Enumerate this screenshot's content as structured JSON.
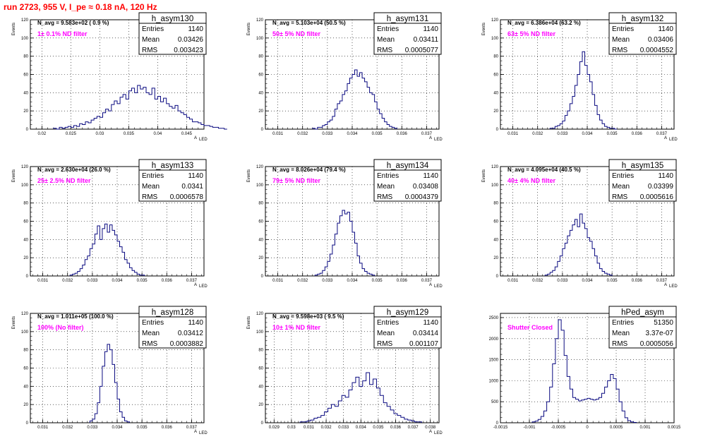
{
  "run_title": "run 2723,   955 V, I_pe ≈ 0.18 nA, 120 Hz",
  "chart_data": [
    {
      "type": "histogram",
      "name": "h_asym130",
      "ylabel": "Events",
      "xlabel": "A",
      "xlabel_sub": "LED",
      "xlim": [
        0.018,
        0.048
      ],
      "ylim": [
        0,
        120
      ],
      "xticks": [
        0.02,
        0.025,
        0.03,
        0.035,
        0.04,
        0.045
      ],
      "xtick_labels": [
        "0.02",
        "0.025",
        "0.03",
        "0.035",
        "0.04",
        "0.045"
      ],
      "yticks": [
        0,
        20,
        40,
        60,
        80,
        100,
        120
      ],
      "grid": true,
      "n_avg_text": "N_avg = 9.583e+02 ( 0.9 %)",
      "filter_text": "1± 0.1% ND filter",
      "stats": {
        "entries_label": "Entries",
        "entries": "1140",
        "mean_label": "Mean",
        "mean": "0.03426",
        "rms_label": "RMS",
        "rms": "0.003423"
      },
      "bins": {
        "start": 0.022,
        "width": 0.0005,
        "values": [
          1,
          0,
          2,
          1,
          2,
          3,
          2,
          4,
          3,
          6,
          5,
          8,
          7,
          10,
          12,
          14,
          13,
          18,
          22,
          20,
          27,
          31,
          28,
          35,
          38,
          33,
          42,
          45,
          40,
          48,
          44,
          46,
          40,
          38,
          45,
          33,
          36,
          30,
          34,
          28,
          25,
          23,
          26,
          20,
          18,
          16,
          13,
          11,
          8,
          8,
          7,
          5,
          4,
          4,
          3,
          2,
          2,
          1,
          1,
          0
        ]
      }
    },
    {
      "type": "histogram",
      "name": "h_asym131",
      "ylabel": "Events",
      "xlabel": "A",
      "xlabel_sub": "LED",
      "xlim": [
        0.0305,
        0.0375
      ],
      "ylim": [
        0,
        120
      ],
      "xticks": [
        0.031,
        0.032,
        0.033,
        0.034,
        0.035,
        0.036,
        0.037
      ],
      "xtick_labels": [
        "0.031",
        "0.032",
        "0.033",
        "0.034",
        "0.035",
        "0.036",
        "0.037"
      ],
      "yticks": [
        0,
        20,
        40,
        60,
        80,
        100,
        120
      ],
      "grid": true,
      "n_avg_text": "N_avg = 5.103e+04 (50.5 %)",
      "filter_text": "50± 5% ND filter",
      "stats": {
        "entries_label": "Entries",
        "entries": "1140",
        "mean_label": "Mean",
        "mean": "0.03411",
        "rms_label": "RMS",
        "rms": "0.0005077"
      },
      "bins": {
        "start": 0.0324,
        "width": 0.0001,
        "values": [
          1,
          0,
          2,
          2,
          4,
          5,
          8,
          10,
          14,
          22,
          28,
          31,
          38,
          42,
          50,
          56,
          60,
          65,
          58,
          62,
          56,
          52,
          46,
          40,
          38,
          30,
          22,
          17,
          12,
          8,
          5,
          3,
          2,
          1
        ]
      }
    },
    {
      "type": "histogram",
      "name": "h_asym132",
      "ylabel": "Events",
      "xlabel": "A",
      "xlabel_sub": "LED",
      "xlim": [
        0.0305,
        0.0375
      ],
      "ylim": [
        0,
        120
      ],
      "xticks": [
        0.031,
        0.032,
        0.033,
        0.034,
        0.035,
        0.036,
        0.037
      ],
      "xtick_labels": [
        "0.031",
        "0.032",
        "0.033",
        "0.034",
        "0.035",
        "0.036",
        "0.037"
      ],
      "yticks": [
        0,
        20,
        40,
        60,
        80,
        100,
        120
      ],
      "grid": true,
      "n_avg_text": "N_avg = 6.386e+04 (63.2 %)",
      "filter_text": "63± 5% ND filter",
      "stats": {
        "entries_label": "Entries",
        "entries": "1140",
        "mean_label": "Mean",
        "mean": "0.03406",
        "rms_label": "RMS",
        "rms": "0.0004552"
      },
      "bins": {
        "start": 0.0325,
        "width": 0.0001,
        "values": [
          1,
          1,
          3,
          4,
          6,
          9,
          15,
          20,
          28,
          36,
          48,
          60,
          74,
          85,
          70,
          60,
          52,
          38,
          26,
          16,
          10,
          6,
          3,
          2,
          1,
          1,
          0
        ]
      }
    },
    {
      "type": "histogram",
      "name": "h_asym133",
      "ylabel": "Events",
      "xlabel": "A",
      "xlabel_sub": "LED",
      "xlim": [
        0.0305,
        0.0375
      ],
      "ylim": [
        0,
        120
      ],
      "xticks": [
        0.031,
        0.032,
        0.033,
        0.034,
        0.035,
        0.036,
        0.037
      ],
      "xtick_labels": [
        "0.031",
        "0.032",
        "0.033",
        "0.034",
        "0.035",
        "0.036",
        "0.037"
      ],
      "yticks": [
        0,
        20,
        40,
        60,
        80,
        100,
        120
      ],
      "grid": true,
      "n_avg_text": "N_avg = 2.630e+04 (26.0 %)",
      "filter_text": "25± 2.5% ND filter",
      "stats": {
        "entries_label": "Entries",
        "entries": "1140",
        "mean_label": "Mean",
        "mean": "0.0341",
        "rms_label": "RMS",
        "rms": "0.0006578"
      },
      "bins": {
        "start": 0.0321,
        "width": 0.0001,
        "values": [
          1,
          2,
          3,
          5,
          8,
          12,
          18,
          22,
          30,
          35,
          46,
          55,
          40,
          52,
          57,
          48,
          56,
          50,
          45,
          38,
          32,
          26,
          18,
          14,
          9,
          6,
          4,
          2,
          1,
          1
        ]
      }
    },
    {
      "type": "histogram",
      "name": "h_asym134",
      "ylabel": "Events",
      "xlabel": "A",
      "xlabel_sub": "LED",
      "xlim": [
        0.0305,
        0.0375
      ],
      "ylim": [
        0,
        120
      ],
      "xticks": [
        0.031,
        0.032,
        0.033,
        0.034,
        0.035,
        0.036,
        0.037
      ],
      "xtick_labels": [
        "0.031",
        "0.032",
        "0.033",
        "0.034",
        "0.035",
        "0.036",
        "0.037"
      ],
      "yticks": [
        0,
        20,
        40,
        60,
        80,
        100,
        120
      ],
      "grid": true,
      "n_avg_text": "N_avg = 8.026e+04 (79.4 %)",
      "filter_text": "79± 5% ND filter",
      "stats": {
        "entries_label": "Entries",
        "entries": "1140",
        "mean_label": "Mean",
        "mean": "0.03408",
        "rms_label": "RMS",
        "rms": "0.0004379"
      },
      "bins": {
        "start": 0.0325,
        "width": 0.0001,
        "values": [
          1,
          2,
          3,
          6,
          10,
          16,
          24,
          34,
          46,
          58,
          66,
          72,
          68,
          70,
          60,
          48,
          36,
          22,
          14,
          8,
          5,
          3,
          2,
          1
        ]
      }
    },
    {
      "type": "histogram",
      "name": "h_asym135",
      "ylabel": "Events",
      "xlabel": "A",
      "xlabel_sub": "LED",
      "xlim": [
        0.0305,
        0.0375
      ],
      "ylim": [
        0,
        120
      ],
      "xticks": [
        0.031,
        0.032,
        0.033,
        0.034,
        0.035,
        0.036,
        0.037
      ],
      "xtick_labels": [
        "0.031",
        "0.032",
        "0.033",
        "0.034",
        "0.035",
        "0.036",
        "0.037"
      ],
      "yticks": [
        0,
        20,
        40,
        60,
        80,
        100,
        120
      ],
      "grid": true,
      "n_avg_text": "N_avg = 4.095e+04 (40.5 %)",
      "filter_text": "40± 4% ND filter",
      "stats": {
        "entries_label": "Entries",
        "entries": "1140",
        "mean_label": "Mean",
        "mean": "0.03399",
        "rms_label": "RMS",
        "rms": "0.0005616"
      },
      "bins": {
        "start": 0.0323,
        "width": 0.0001,
        "values": [
          1,
          2,
          4,
          6,
          10,
          16,
          22,
          30,
          36,
          44,
          50,
          56,
          62,
          54,
          68,
          58,
          52,
          42,
          38,
          30,
          22,
          14,
          8,
          5,
          3,
          2,
          1
        ]
      }
    },
    {
      "type": "histogram",
      "name": "h_asym128",
      "ylabel": "Events",
      "xlabel": "A",
      "xlabel_sub": "LED",
      "xlim": [
        0.0305,
        0.0375
      ],
      "ylim": [
        0,
        120
      ],
      "xticks": [
        0.031,
        0.032,
        0.033,
        0.034,
        0.035,
        0.036,
        0.037
      ],
      "xtick_labels": [
        "0.031",
        "0.032",
        "0.033",
        "0.034",
        "0.035",
        "0.036",
        "0.037"
      ],
      "yticks": [
        0,
        20,
        40,
        60,
        80,
        100,
        120
      ],
      "grid": true,
      "n_avg_text": "N_avg = 1.011e+05 (100.0 %)",
      "filter_text": "100% (No filter)",
      "stats": {
        "entries_label": "Entries",
        "entries": "1140",
        "mean_label": "Mean",
        "mean": "0.03412",
        "rms_label": "RMS",
        "rms": "0.0003882"
      },
      "bins": {
        "start": 0.0329,
        "width": 0.0001,
        "values": [
          2,
          4,
          10,
          22,
          40,
          62,
          78,
          86,
          80,
          64,
          44,
          26,
          12,
          6,
          2,
          1
        ]
      }
    },
    {
      "type": "histogram",
      "name": "h_asym129",
      "ylabel": "Events",
      "xlabel": "A",
      "xlabel_sub": "LED",
      "xlim": [
        0.0285,
        0.0385
      ],
      "ylim": [
        0,
        120
      ],
      "xticks": [
        0.029,
        0.03,
        0.031,
        0.032,
        0.033,
        0.034,
        0.035,
        0.036,
        0.037,
        0.038
      ],
      "xtick_labels": [
        "0.029",
        "0.03",
        "0.031",
        "0.032",
        "0.033",
        "0.034",
        "0.035",
        "0.036",
        "0.037",
        "0.038"
      ],
      "yticks": [
        0,
        20,
        40,
        60,
        80,
        100,
        120
      ],
      "grid": true,
      "n_avg_text": "N_avg = 9.598e+03 ( 9.5 %)",
      "filter_text": "10± 1% ND filter",
      "stats": {
        "entries_label": "Entries",
        "entries": "1140",
        "mean_label": "Mean",
        "mean": "0.03414",
        "rms_label": "RMS",
        "rms": "0.001107"
      },
      "bins": {
        "start": 0.0305,
        "width": 0.0002,
        "values": [
          1,
          1,
          2,
          3,
          5,
          6,
          8,
          12,
          16,
          20,
          18,
          24,
          30,
          28,
          36,
          44,
          50,
          40,
          46,
          55,
          42,
          48,
          38,
          30,
          22,
          18,
          14,
          10,
          8,
          6,
          4,
          3,
          2,
          1,
          1
        ]
      }
    },
    {
      "type": "histogram",
      "name": "hPed_asym",
      "xlim": [
        -0.0015,
        0.0015
      ],
      "ylim": [
        0,
        2600
      ],
      "xticks": [
        -0.0015,
        -0.001,
        -0.0005,
        0,
        0.0005,
        0.001,
        0.0015
      ],
      "xtick_labels": [
        "-0.0015",
        "-0.001",
        "-0.0005",
        "0",
        "0.0005",
        "0.001",
        "0.0015"
      ],
      "yticks": [
        0,
        500,
        1000,
        1500,
        2000,
        2500
      ],
      "grid": true,
      "filter_text": "Shutter Closed",
      "stats": {
        "entries_label": "Entries",
        "entries": "51350",
        "mean_label": "Mean",
        "mean": "3.37e-07",
        "rms_label": "RMS",
        "rms": "0.0005056"
      },
      "bins": {
        "start": -0.00095,
        "width": 5e-05,
        "values": [
          20,
          40,
          80,
          150,
          280,
          500,
          850,
          1400,
          2000,
          2450,
          2200,
          1600,
          1100,
          800,
          600,
          560,
          520,
          540,
          560,
          580,
          560,
          540,
          560,
          600,
          700,
          850,
          1000,
          1150,
          1050,
          800,
          500,
          280,
          120,
          50,
          20,
          8
        ]
      }
    }
  ]
}
